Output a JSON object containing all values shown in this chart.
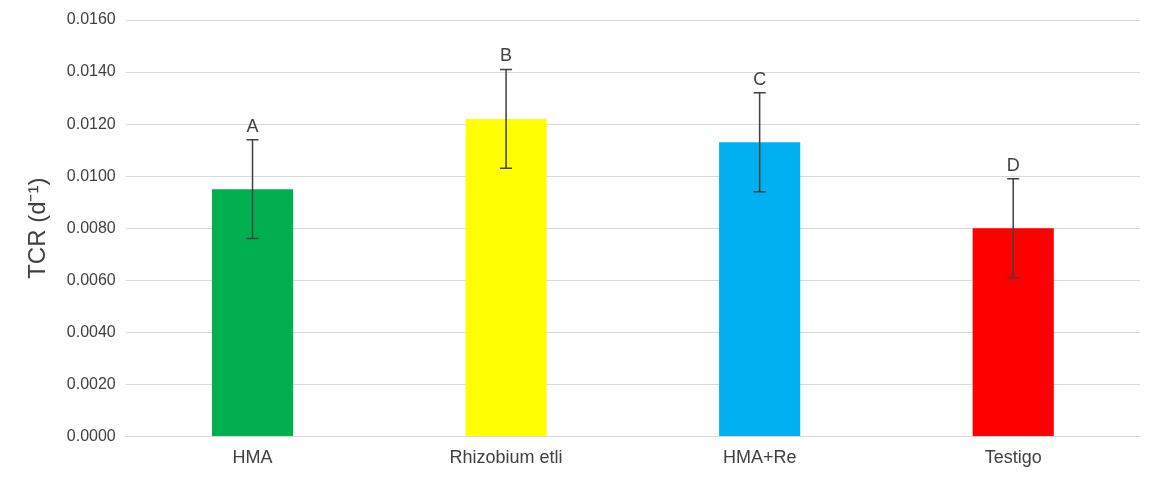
{
  "chart_data": {
    "type": "bar",
    "ylabel": "TCR (d⁻¹)",
    "categories": [
      "HMA",
      "Rhizobium etli",
      "HMA+Re",
      "Testigo"
    ],
    "values": [
      0.0095,
      0.0122,
      0.0113,
      0.008
    ],
    "colors": [
      "#00b050",
      "#ffff00",
      "#00b0f0",
      "#ff0000"
    ],
    "errors": [
      0.0019,
      0.0019,
      0.0019,
      0.0019
    ],
    "ylim": [
      0,
      0.016
    ],
    "yticks": [
      {
        "value": 0,
        "label": "0.0000"
      },
      {
        "value": 0.002,
        "label": "0.0020"
      },
      {
        "value": 0.004,
        "label": "0.0040"
      },
      {
        "value": 0.006,
        "label": "0.0060"
      },
      {
        "value": 0.008,
        "label": "0.0080"
      },
      {
        "value": 0.01,
        "label": "0.0100"
      },
      {
        "value": 0.012,
        "label": "0.0120"
      },
      {
        "value": 0.014,
        "label": "0.0140"
      },
      {
        "value": 0.016,
        "label": "0.0160"
      }
    ],
    "grid": "y",
    "legend": false,
    "annotations": [
      {
        "text": "A",
        "x": "HMA",
        "y": 0.0114
      },
      {
        "text": "B",
        "x": "Rhizobium etli",
        "y": 0.0141
      },
      {
        "text": "C",
        "x": "HMA+Re",
        "y": 0.0132
      },
      {
        "text": "D",
        "x": "Testigo",
        "y": 0.0099
      }
    ]
  }
}
